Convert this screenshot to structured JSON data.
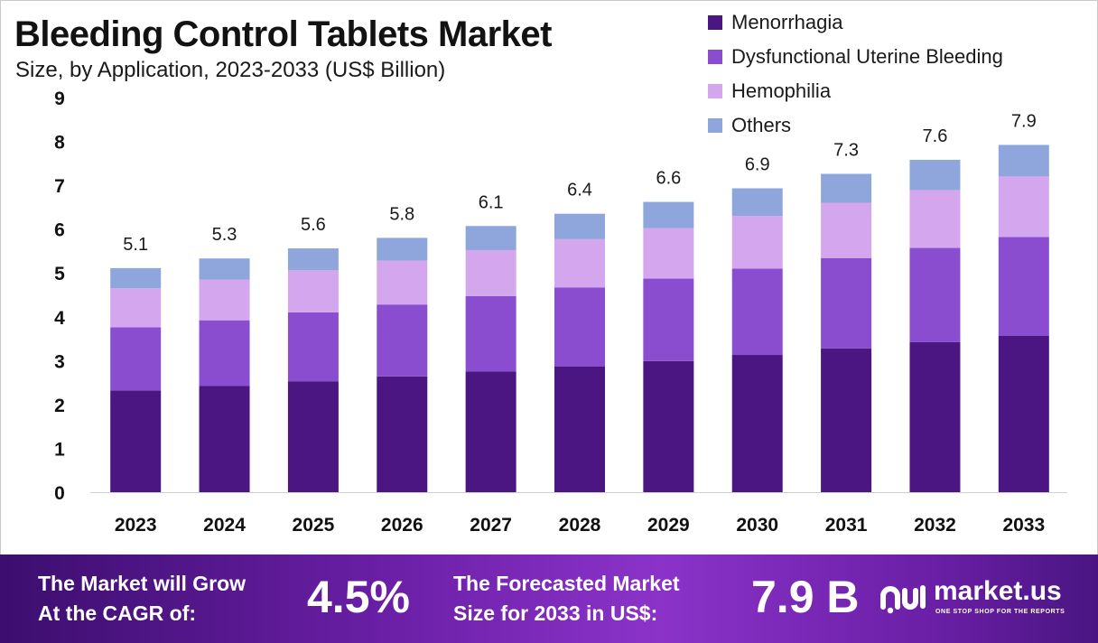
{
  "chart_data": {
    "type": "bar",
    "stacked": true,
    "title": "Bleeding Control Tablets Market",
    "subtitle": "Size, by Application, 2023-2033 (US$ Billion)",
    "categories": [
      "2023",
      "2024",
      "2025",
      "2026",
      "2027",
      "2028",
      "2029",
      "2030",
      "2031",
      "2032",
      "2033"
    ],
    "series": [
      {
        "name": "Menorrhagia",
        "color": "#4b1681",
        "values": [
          2.32,
          2.42,
          2.53,
          2.64,
          2.75,
          2.87,
          2.99,
          3.13,
          3.28,
          3.42,
          3.57
        ]
      },
      {
        "name": "Dysfunctional Uterine Bleeding",
        "color": "#8a4dd0",
        "values": [
          1.44,
          1.5,
          1.57,
          1.64,
          1.72,
          1.8,
          1.88,
          1.97,
          2.06,
          2.15,
          2.25
        ]
      },
      {
        "name": "Hemophilia",
        "color": "#d3a6ee",
        "values": [
          0.89,
          0.93,
          0.96,
          1.0,
          1.05,
          1.1,
          1.15,
          1.2,
          1.26,
          1.32,
          1.38
        ]
      },
      {
        "name": "Others",
        "color": "#8ea6dc",
        "values": [
          0.46,
          0.48,
          0.5,
          0.52,
          0.55,
          0.58,
          0.6,
          0.63,
          0.66,
          0.69,
          0.72
        ]
      }
    ],
    "totals": [
      "5.1",
      "5.3",
      "5.6",
      "5.8",
      "6.1",
      "6.4",
      "6.6",
      "6.9",
      "7.3",
      "7.6",
      "7.9"
    ],
    "ylim": [
      0,
      9
    ],
    "yticks": [
      "0",
      "1",
      "2",
      "3",
      "4",
      "5",
      "6",
      "7",
      "8",
      "9"
    ],
    "xlabel": "",
    "ylabel": "",
    "legend_position": "top-right",
    "grid": false
  },
  "footer": {
    "cagr_label_line1": "The Market will Grow",
    "cagr_label_line2": "At the CAGR of:",
    "cagr_value": "4.5%",
    "forecast_label_line1": "The Forecasted Market",
    "forecast_label_line2": "Size for 2033 in US$:",
    "forecast_value": "7.9 B",
    "brand_name": "market.us",
    "brand_tagline": "ONE STOP SHOP FOR THE REPORTS"
  }
}
